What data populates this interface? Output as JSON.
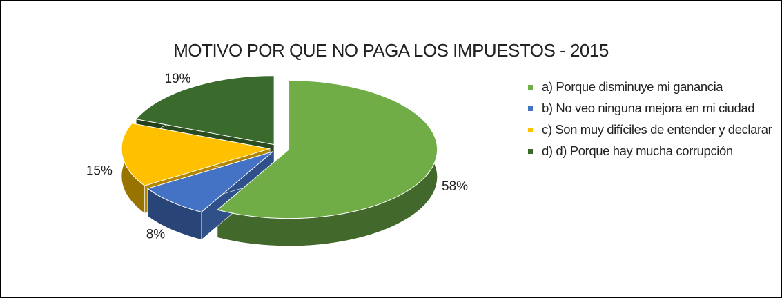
{
  "chart_data": {
    "type": "pie",
    "title": "MOTIVO POR QUE NO PAGA LOS IMPUESTOS - 2015",
    "categories": [
      "a)  Porque disminuye mi ganancia",
      "b)  No veo ninguna mejora en mi ciudad",
      "c)  Son muy difíciles de entender y declarar",
      "d)  d) Porque hay mucha corrupción"
    ],
    "values": [
      58,
      8,
      15,
      19
    ],
    "value_labels": [
      "58%",
      "8%",
      "15%",
      "19%"
    ],
    "colors": [
      "#70ad47",
      "#4472c4",
      "#ffc000",
      "#3b6b2c"
    ],
    "legend": "right"
  }
}
